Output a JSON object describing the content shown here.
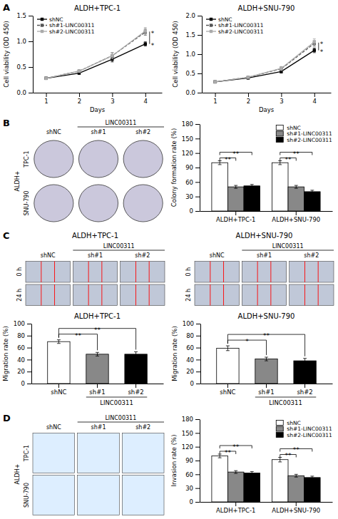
{
  "chart_data": [
    {
      "type": "line",
      "panel": "A",
      "title": "ALDH+TPC-1",
      "x_label": "Days",
      "y_label": "Cell viability (OD 450)",
      "x": [
        1,
        2,
        3,
        4
      ],
      "xlim": [
        0.6,
        4.5
      ],
      "xticks": [
        1,
        2,
        3,
        4
      ],
      "ylim": [
        0.0,
        1.5
      ],
      "yticks": [
        {
          "value": 0.0,
          "label": "0.0"
        },
        0.5,
        {
          "value": 1.0,
          "label": "1.0"
        },
        1.5
      ],
      "legend": "upper left",
      "marker": "square",
      "series": [
        {
          "name": "shNC",
          "color": "black",
          "line_style": "solid",
          "values": [
            0.28,
            0.38,
            0.65,
            0.95
          ],
          "errors": [
            0.02,
            0.02,
            0.05,
            0.04
          ]
        },
        {
          "name": "sh#1-LINC00311",
          "color": "#555555",
          "line_style": "dashed",
          "values": [
            0.28,
            0.42,
            0.72,
            1.18
          ],
          "errors": [
            0.02,
            0.02,
            0.06,
            0.06
          ]
        },
        {
          "name": "sh#2-LINC00311",
          "color": "#aaaaaa",
          "line_style": "solid",
          "values": [
            0.28,
            0.42,
            0.72,
            1.2
          ],
          "errors": [
            0.02,
            0.02,
            0.06,
            0.07
          ]
        }
      ],
      "annotations": [
        "*",
        "*"
      ]
    },
    {
      "type": "line",
      "title": "ALDH+SNU-790",
      "x_label": "Days",
      "y_label": "Cell viability (OD 450)",
      "x": [
        1,
        2,
        3,
        4
      ],
      "xlim": [
        0.6,
        4.5
      ],
      "xticks": [
        1,
        2,
        3,
        4
      ],
      "ylim": [
        0.0,
        2.0
      ],
      "yticks": [
        {
          "value": 0.0,
          "label": "0.0"
        },
        0.5,
        {
          "value": 1.0,
          "label": "1.0"
        },
        1.5,
        {
          "value": 2.0,
          "label": "2.0"
        }
      ],
      "legend": "upper left",
      "marker": "square",
      "series": [
        {
          "name": "shNC",
          "color": "black",
          "line_style": "solid",
          "values": [
            0.28,
            0.38,
            0.55,
            1.1
          ],
          "errors": [
            0.02,
            0.02,
            0.04,
            0.06
          ]
        },
        {
          "name": "sh#1-LINC00311",
          "color": "#555555",
          "line_style": "dashed",
          "values": [
            0.28,
            0.4,
            0.62,
            1.28
          ],
          "errors": [
            0.02,
            0.02,
            0.05,
            0.07
          ]
        },
        {
          "name": "sh#2-LINC00311",
          "color": "#aaaaaa",
          "line_style": "solid",
          "values": [
            0.28,
            0.4,
            0.63,
            1.32
          ],
          "errors": [
            0.02,
            0.02,
            0.05,
            0.08
          ]
        }
      ],
      "annotations": [
        "*",
        "*"
      ]
    },
    {
      "type": "image",
      "panel": "B",
      "categories": [
        "shNC",
        "sh#1",
        "sh#2"
      ],
      "rows": [
        "TPC-1",
        "SNU-790"
      ],
      "x_label": "LINC00311",
      "y_label": "ALDH+",
      "marker": "ellipse",
      "color": "#cbc8dc"
    },
    {
      "type": "bar",
      "y_label": "Colony formation rate (%)",
      "categories": [
        "ALDH+TPC-1",
        "ALDH+SNU-790"
      ],
      "ylim": [
        0,
        180
      ],
      "yticks": [
        0,
        30,
        60,
        90,
        120,
        150,
        180
      ],
      "legend": "upper right",
      "series": [
        {
          "name": "shNC",
          "color": "white",
          "values": [
            100,
            100
          ],
          "errors": [
            4,
            4
          ]
        },
        {
          "name": "sh#1-LINC00311",
          "color": "#888888",
          "values": [
            50,
            50
          ],
          "errors": [
            3,
            3
          ]
        },
        {
          "name": "sh#2-LINC00311",
          "color": "black",
          "values": [
            52,
            40
          ],
          "errors": [
            3,
            3
          ]
        }
      ],
      "annotations": [
        "**",
        "**",
        "**",
        "**"
      ]
    },
    {
      "type": "image",
      "panel": "C",
      "title": "ALDH+TPC-1",
      "categories": [
        "shNC",
        "sh#1",
        "sh#2"
      ],
      "rows": [
        "0 h",
        "24 h"
      ],
      "x_label": "LINC00311",
      "marker": "scratch",
      "color": "#c0c8d8"
    },
    {
      "type": "bar",
      "title": "ALDH+TPC-1",
      "y_label": "Migration rate (%)",
      "x_label": "LINC00311",
      "categories": [
        "shNC",
        "sh#1",
        "sh#2"
      ],
      "values": [
        70,
        49,
        49
      ],
      "errors": [
        3,
        3,
        4
      ],
      "colors": [
        "white",
        "#888888",
        "black"
      ],
      "ylim": [
        0,
        100
      ],
      "yticks": [
        0,
        20,
        40,
        60,
        80,
        100
      ],
      "annotations": [
        "**",
        "**"
      ]
    },
    {
      "type": "image",
      "title": "ALDH+SNU-790",
      "categories": [
        "shNC",
        "sh#1",
        "sh#2"
      ],
      "rows": [
        "0 h",
        "24 h"
      ],
      "x_label": "LINC00311",
      "marker": "scratch",
      "color": "#c0c8d8"
    },
    {
      "type": "bar",
      "title": "ALDH+SNU-790",
      "y_label": "Migration rate (%)",
      "x_label": "LINC00311",
      "categories": [
        "shNC",
        "sh#1",
        "sh#2"
      ],
      "values": [
        59,
        41,
        38
      ],
      "errors": [
        4,
        3,
        4
      ],
      "colors": [
        "white",
        "#888888",
        "black"
      ],
      "ylim": [
        0,
        100
      ],
      "yticks": [
        0,
        20,
        40,
        60,
        80,
        100
      ],
      "annotations": [
        "*",
        "**"
      ]
    },
    {
      "type": "image",
      "panel": "D",
      "categories": [
        "shNC",
        "sh#1",
        "sh#2"
      ],
      "rows": [
        "TPC-1",
        "SNU-790"
      ],
      "x_label": "LINC00311",
      "y_label": "ALDH+",
      "marker": "rect",
      "color": "#ddeeff"
    },
    {
      "type": "bar",
      "y_label": "Invasion rate (%)",
      "categories": [
        "ALDH+TPC-1",
        "ALDH+SNU-790"
      ],
      "ylim": [
        0,
        180
      ],
      "yticks": [
        0,
        30,
        60,
        90,
        120,
        150,
        180
      ],
      "legend": "upper right",
      "series": [
        {
          "name": "shNC",
          "color": "white",
          "values": [
            100,
            92
          ],
          "errors": [
            4,
            5
          ]
        },
        {
          "name": "sh#1-LINC00311",
          "color": "#888888",
          "values": [
            65,
            57
          ],
          "errors": [
            3,
            3
          ]
        },
        {
          "name": "sh#2-LINC00311",
          "color": "black",
          "values": [
            63,
            53
          ],
          "errors": [
            3,
            3
          ]
        }
      ],
      "annotations": [
        "**",
        "**",
        "**",
        "**"
      ]
    }
  ]
}
